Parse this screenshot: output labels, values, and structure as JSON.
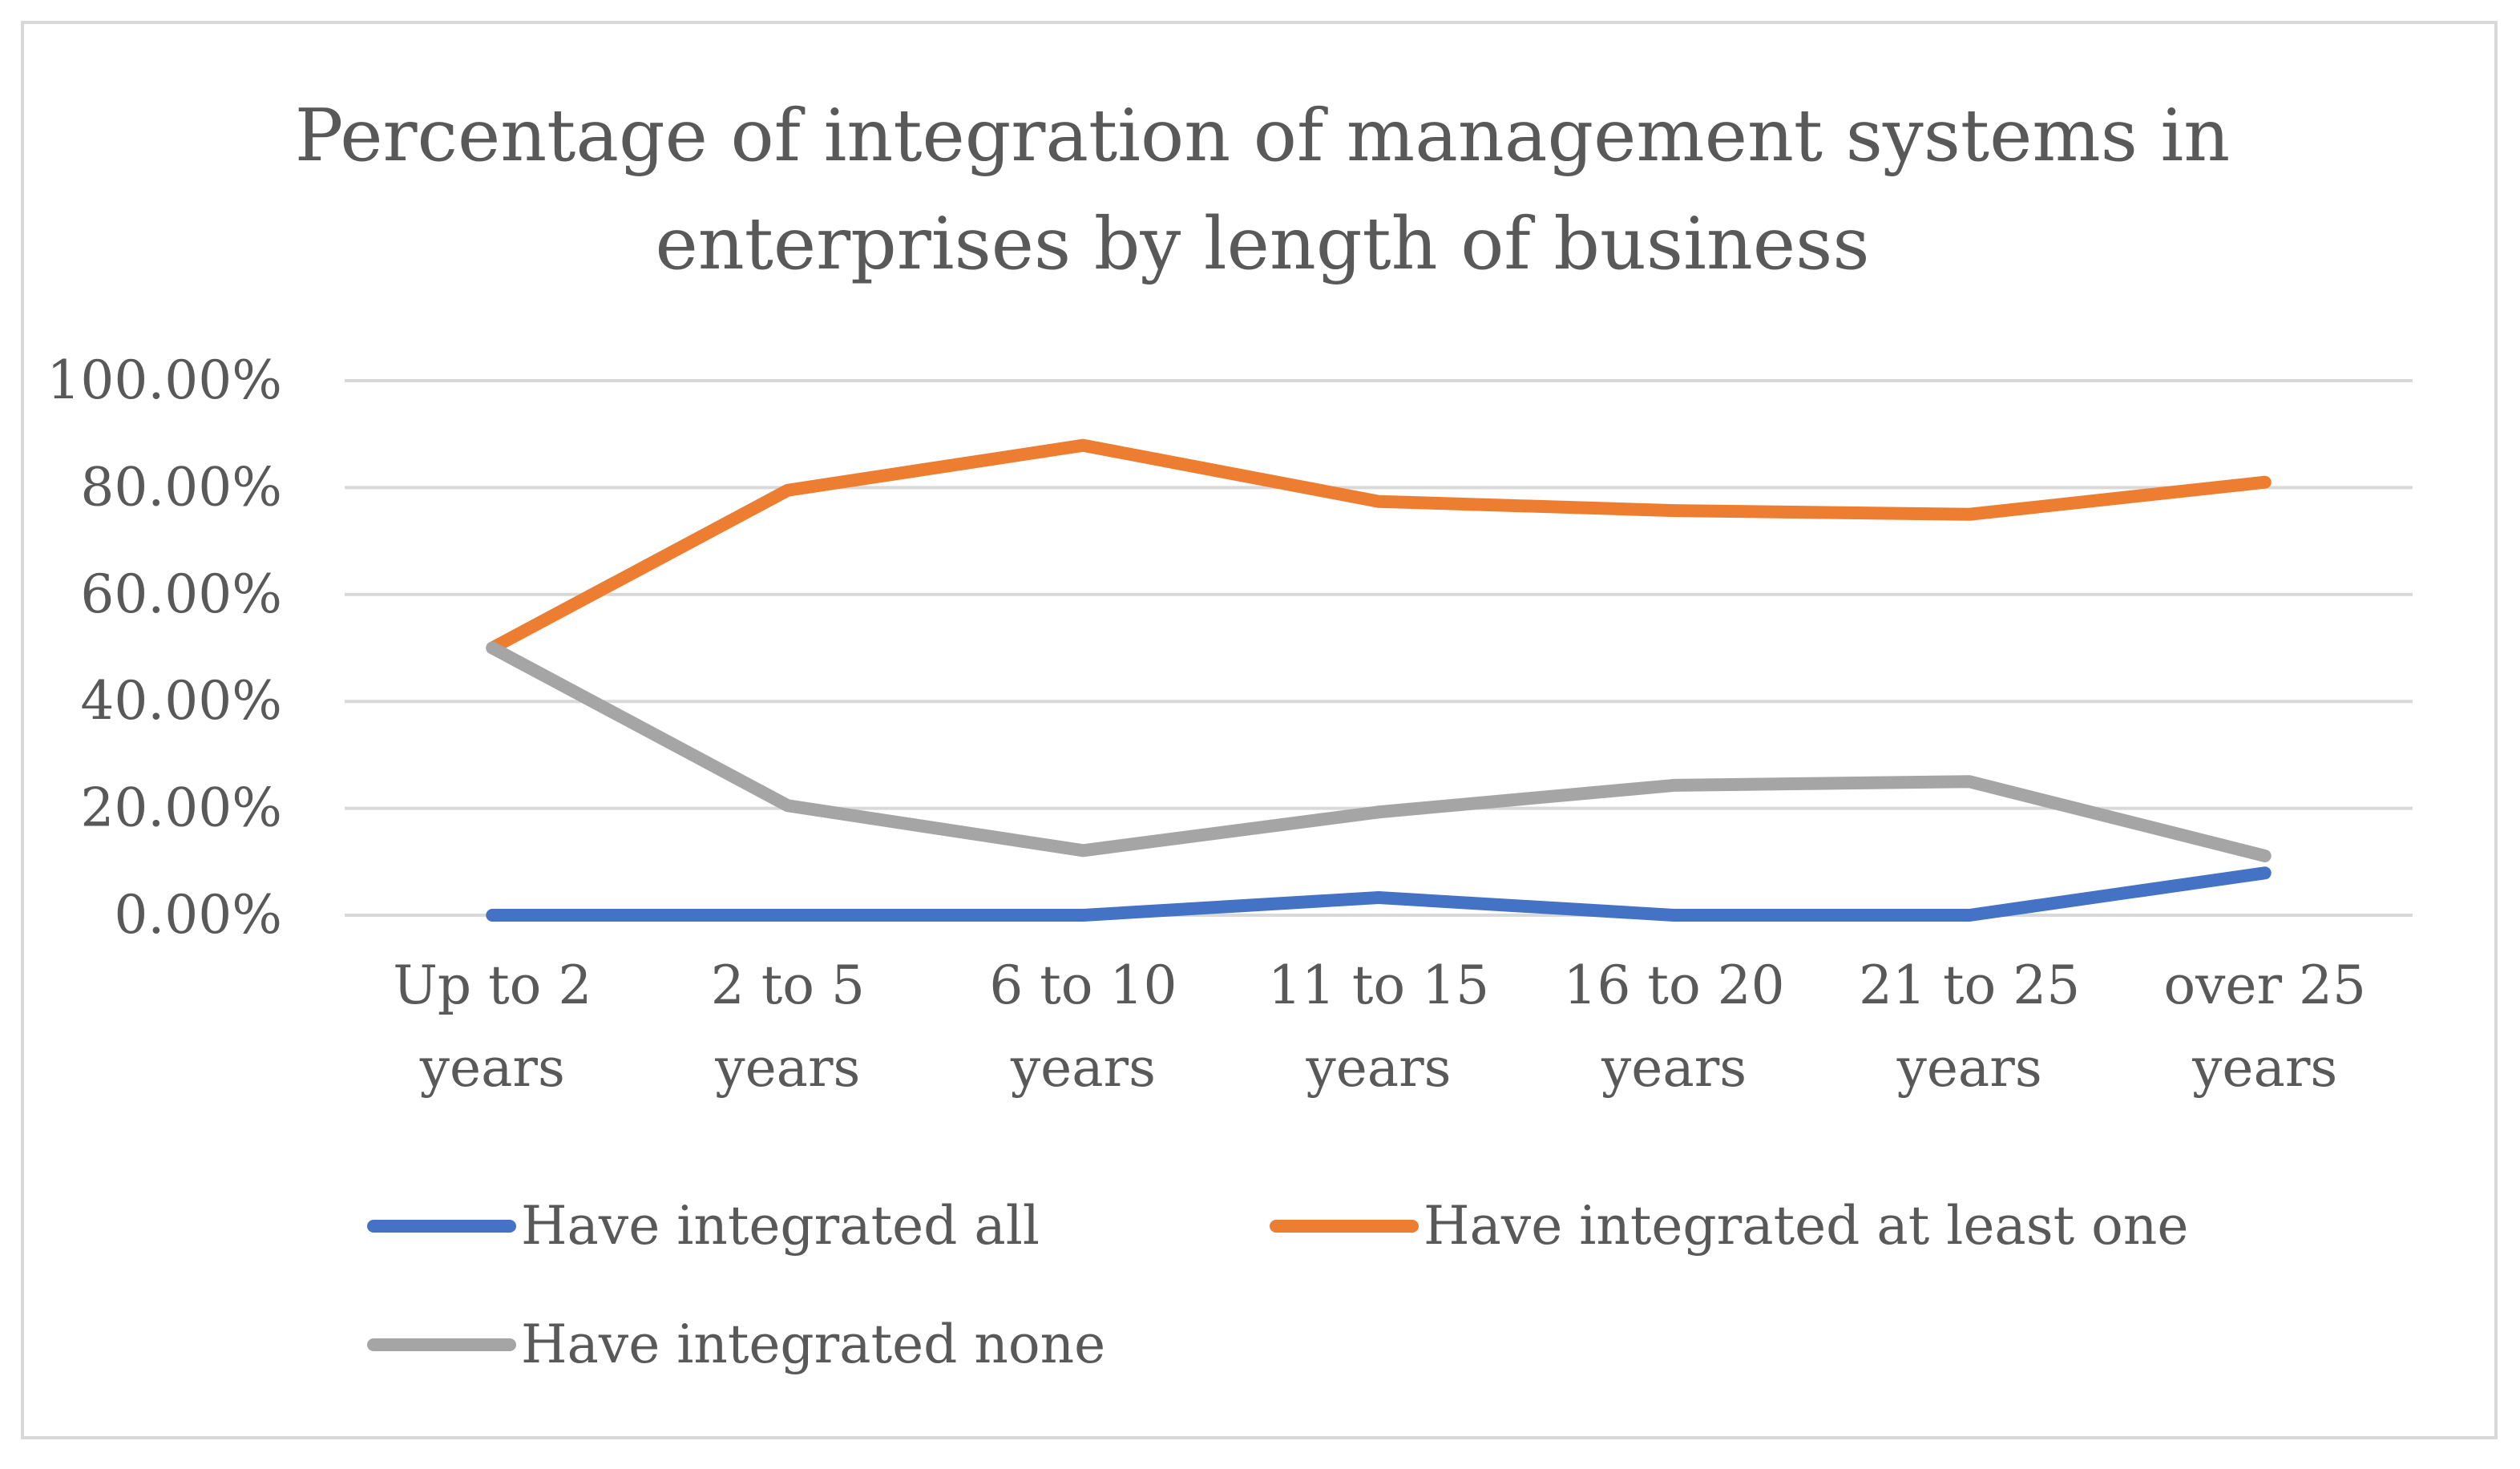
{
  "chart_data": {
    "type": "line",
    "title": "Percentage of integration of management systems in enterprises by length of business",
    "title_lines": [
      "Percentage of integration of management systems in",
      "enterprises by length of business"
    ],
    "categories": [
      "Up to 2 years",
      "2 to 5 years",
      "6 to 10 years",
      "11 to 15 years",
      "16 to 20 years",
      "21 to 25 years",
      "over 25 years"
    ],
    "category_lines": [
      [
        "Up to 2",
        "years"
      ],
      [
        "2 to 5",
        "years"
      ],
      [
        "6 to 10",
        "years"
      ],
      [
        "11 to 15",
        "years"
      ],
      [
        "16 to 20",
        "years"
      ],
      [
        "21 to 25",
        "years"
      ],
      [
        "over 25",
        "years"
      ]
    ],
    "series": [
      {
        "name": "Have integrated all",
        "color": "#4472c4",
        "values": [
          0,
          0,
          0,
          3.3,
          0,
          0,
          7.9
        ]
      },
      {
        "name": "Have integrated at least one",
        "color": "#ed7d31",
        "values": [
          50,
          79.5,
          87.9,
          77.4,
          75.7,
          75.0,
          81.0
        ]
      },
      {
        "name": "Have integrated none",
        "color": "#a5a5a5",
        "values": [
          50,
          20.5,
          12.1,
          19.3,
          24.3,
          25.0,
          11.1
        ]
      }
    ],
    "yticks": [
      "0.00%",
      "20.00%",
      "40.00%",
      "60.00%",
      "80.00%",
      "100.00%"
    ],
    "ylim": [
      0,
      100
    ],
    "xlabel": "",
    "ylabel": "",
    "grid": true,
    "legend_position": "bottom"
  }
}
